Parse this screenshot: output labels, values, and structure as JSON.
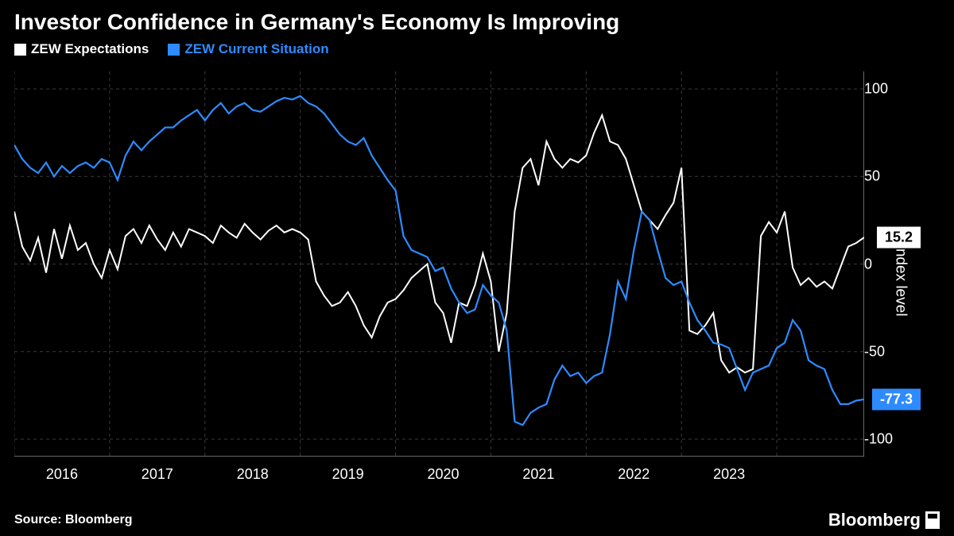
{
  "title": "Investor Confidence in Germany's Economy Is Improving",
  "source": "Source: Bloomberg",
  "brand": "Bloomberg",
  "y_axis": {
    "title": "Index level",
    "min": -110,
    "max": 110,
    "ticks": [
      100,
      50,
      0,
      -50,
      -100
    ],
    "label_color": "#ffffff",
    "fontsize": 18
  },
  "x_axis": {
    "ticks": [
      "2016",
      "2017",
      "2018",
      "2019",
      "2020",
      "2021",
      "2022",
      "2023"
    ],
    "label_color": "#ffffff",
    "fontsize": 18
  },
  "grid": {
    "color": "#3a3a3a",
    "dash": "4,4",
    "axis_color": "#888888"
  },
  "background_color": "#000000",
  "series": [
    {
      "name": "ZEW Expectations",
      "color": "#ffffff",
      "line_width": 2,
      "end_value": 15.2,
      "end_badge_bg": "#ffffff",
      "end_badge_text": "#000000",
      "data": [
        30,
        10,
        2,
        15,
        -5,
        20,
        3,
        22,
        8,
        12,
        0,
        -8,
        8,
        -3,
        16,
        20,
        12,
        22,
        14,
        8,
        18,
        10,
        20,
        18,
        16,
        12,
        22,
        18,
        15,
        23,
        18,
        14,
        19,
        22,
        18,
        20,
        18,
        14,
        -10,
        -18,
        -24,
        -22,
        -16,
        -24,
        -35,
        -42,
        -30,
        -22,
        -20,
        -15,
        -8,
        -4,
        0,
        -22,
        -28,
        -45,
        -22,
        -24,
        -12,
        6,
        -10,
        -50,
        -28,
        30,
        55,
        60,
        45,
        70,
        60,
        55,
        60,
        58,
        62,
        75,
        85,
        70,
        68,
        60,
        45,
        30,
        25,
        20,
        28,
        35,
        55,
        -38,
        -40,
        -35,
        -28,
        -55,
        -62,
        -59,
        -62,
        -60,
        16,
        24,
        18,
        30,
        -2,
        -12,
        -8,
        -13,
        -10,
        -14,
        -2,
        10,
        12,
        15.2
      ]
    },
    {
      "name": "ZEW Current Situation",
      "color": "#2e8bff",
      "line_width": 2.2,
      "end_value": -77.3,
      "end_badge_bg": "#2e8bff",
      "end_badge_text": "#ffffff",
      "data": [
        68,
        60,
        55,
        52,
        58,
        50,
        56,
        52,
        56,
        58,
        55,
        60,
        58,
        48,
        62,
        70,
        65,
        70,
        74,
        78,
        78,
        82,
        85,
        88,
        82,
        88,
        92,
        86,
        90,
        92,
        88,
        87,
        90,
        93,
        95,
        94,
        96,
        92,
        90,
        86,
        80,
        74,
        70,
        68,
        72,
        62,
        55,
        48,
        42,
        16,
        8,
        6,
        4,
        -4,
        -2,
        -14,
        -22,
        -28,
        -26,
        -12,
        -18,
        -22,
        -38,
        -90,
        -92,
        -85,
        -82,
        -80,
        -66,
        -58,
        -64,
        -62,
        -68,
        -64,
        -62,
        -40,
        -10,
        -20,
        8,
        30,
        25,
        8,
        -8,
        -12,
        -10,
        -22,
        -32,
        -38,
        -45,
        -46,
        -48,
        -60,
        -72,
        -62,
        -60,
        -58,
        -48,
        -45,
        -32,
        -38,
        -55,
        -58,
        -60,
        -72,
        -80,
        -80,
        -78,
        -77.3
      ]
    }
  ]
}
